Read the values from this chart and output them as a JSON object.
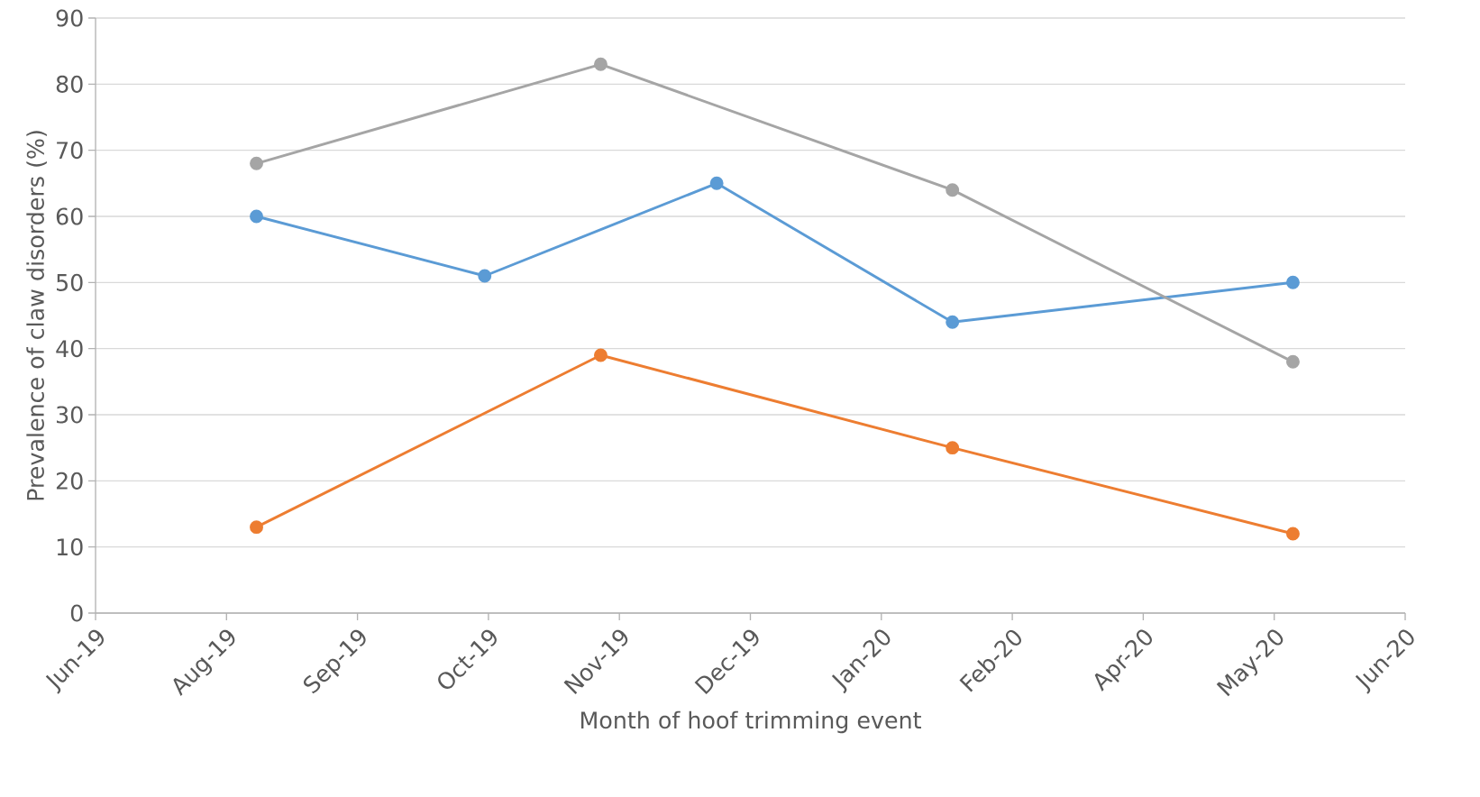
{
  "chart_data": {
    "type": "line",
    "xlabel": "Month of hoof trimming event",
    "ylabel": "Prevalence of claw disorders (%)",
    "xlim": [
      "2019-06-28",
      "2020-06-12"
    ],
    "xticks": [
      {
        "value": "2019-06-28",
        "label": "Jun-19"
      },
      {
        "value": "2019-08-02",
        "label": "Aug-19"
      },
      {
        "value": "2019-09-06",
        "label": "Sep-19"
      },
      {
        "value": "2019-10-11",
        "label": "Oct-19"
      },
      {
        "value": "2019-11-15",
        "label": "Nov-19"
      },
      {
        "value": "2019-12-20",
        "label": "Dec-19"
      },
      {
        "value": "2020-01-24",
        "label": "Jan-20"
      },
      {
        "value": "2020-02-28",
        "label": "Feb-20"
      },
      {
        "value": "2020-04-03",
        "label": "Apr-20"
      },
      {
        "value": "2020-05-08",
        "label": "May-20"
      },
      {
        "value": "2020-06-12",
        "label": "Jun-20"
      }
    ],
    "ylim": [
      0,
      90
    ],
    "yticks": [
      0,
      10,
      20,
      30,
      40,
      50,
      60,
      70,
      80,
      90
    ],
    "grid": "y",
    "marker": "circle",
    "line_style": "solid",
    "series": [
      {
        "color": "#5b9bd5",
        "x": [
          "2019-08-10",
          "2019-10-10",
          "2019-12-11",
          "2020-02-12",
          "2020-05-13"
        ],
        "values": [
          60,
          51,
          65,
          44,
          50
        ]
      },
      {
        "color": "#ed7d31",
        "x": [
          "2019-08-10",
          "2019-11-10",
          "2020-02-12",
          "2020-05-13"
        ],
        "values": [
          13,
          39,
          25,
          12
        ]
      },
      {
        "color": "#a5a5a5",
        "x": [
          "2019-08-10",
          "2019-11-10",
          "2020-02-12",
          "2020-05-13"
        ],
        "values": [
          68,
          83,
          64,
          38
        ]
      }
    ]
  }
}
